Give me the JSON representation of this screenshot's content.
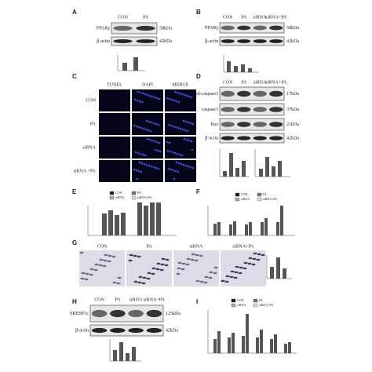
{
  "panel_a": {
    "letter": "A",
    "lanes": [
      "CON",
      "PA"
    ],
    "rows": [
      {
        "protein": "PPARγ",
        "size": "58kDa"
      },
      {
        "protein": "β-actin",
        "size": "42kDa"
      }
    ]
  },
  "panel_b": {
    "letter": "B",
    "lanes": [
      "CON",
      "PA",
      "siRNA",
      "siRNA+PA"
    ],
    "rows": [
      {
        "protein": "PPARγ",
        "size": "58kDa"
      },
      {
        "protein": "β-actin",
        "size": "42kDa"
      }
    ]
  },
  "panel_c": {
    "letter": "C",
    "columns": [
      "TUNEL",
      "DAPI",
      "MERGE"
    ],
    "rows": [
      "CON",
      "PA",
      "siRNA",
      "siRNA +PA"
    ]
  },
  "panel_d": {
    "letter": "D",
    "lanes": [
      "CON",
      "PA",
      "siRNA",
      "siRNA+PA"
    ],
    "rows": [
      {
        "protein": "cleaved-caspase3",
        "size": "17kDa"
      },
      {
        "protein": "caspase3",
        "size": "37kDa"
      },
      {
        "protein": "Bax",
        "size": "21kDa"
      },
      {
        "protein": "β-actin",
        "size": "42kDa"
      }
    ]
  },
  "panel_e": {
    "letter": "E",
    "legend": [
      "CON",
      "PA",
      "siRNA",
      "siRNA+PA"
    ]
  },
  "panel_f": {
    "letter": "F",
    "legend": [
      "CON",
      "PA",
      "siRNA",
      "siRNA+PA"
    ]
  },
  "panel_g": {
    "letter": "G",
    "columns": [
      "CON",
      "PA",
      "siRNA",
      "siRNA+PA"
    ]
  },
  "panel_h": {
    "letter": "H",
    "lanes": [
      "CON",
      "PA",
      "siRNA",
      "siRNA+PA"
    ],
    "rows": [
      {
        "protein": "SREBP1c",
        "size": "125kDa"
      },
      {
        "protein": "β-actin",
        "size": "42kDa"
      }
    ]
  },
  "panel_i": {
    "letter": "I",
    "legend": [
      "CON",
      "PA",
      "siRNA",
      "siRNA+PA"
    ]
  }
}
